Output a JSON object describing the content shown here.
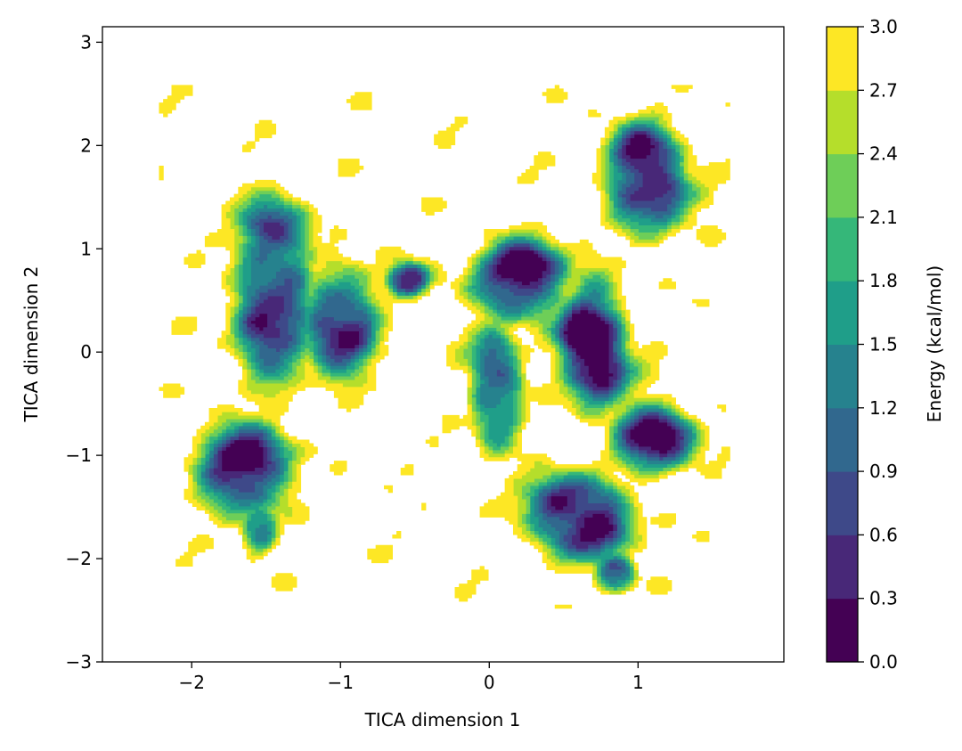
{
  "chart_data": {
    "type": "contour",
    "title": "",
    "xlabel": "TICA dimension 1",
    "ylabel": "TICA dimension 2",
    "xlim": [
      -2.6,
      1.98
    ],
    "ylim": [
      -3.0,
      3.15
    ],
    "xticks": [
      -2,
      -1,
      0,
      1
    ],
    "xtick_labels": [
      "−2",
      "−1",
      "0",
      "1"
    ],
    "yticks": [
      -3,
      -2,
      -1,
      0,
      1,
      2,
      3
    ],
    "ytick_labels": [
      "−3",
      "−2",
      "−1",
      "0",
      "1",
      "2",
      "3"
    ],
    "grid": false,
    "colorbar": {
      "label": "Energy (kcal/mol)",
      "levels": [
        0.0,
        0.3,
        0.6,
        0.9,
        1.2,
        1.5,
        1.8,
        2.1,
        2.4,
        2.7,
        3.0
      ],
      "tick_labels": [
        "0.0",
        "0.3",
        "0.6",
        "0.9",
        "1.2",
        "1.5",
        "1.8",
        "2.1",
        "2.4",
        "2.7",
        "3.0"
      ],
      "colors": [
        "#440154",
        "#482878",
        "#3e4989",
        "#31688e",
        "#26828e",
        "#1f9e89",
        "#35b779",
        "#6ece58",
        "#b5de2b",
        "#fde725"
      ]
    },
    "minima": [
      {
        "x": 0.25,
        "y": 0.85,
        "energy": 0.0
      },
      {
        "x": 0.62,
        "y": 0.2,
        "energy": 0.0
      },
      {
        "x": 0.8,
        "y": -0.25,
        "energy": 0.1
      },
      {
        "x": -1.63,
        "y": -1.0,
        "energy": 0.1
      },
      {
        "x": 1.15,
        "y": -0.8,
        "energy": 0.4
      },
      {
        "x": 0.8,
        "y": -1.75,
        "energy": 0.4
      },
      {
        "x": 0.4,
        "y": -1.4,
        "energy": 0.5
      },
      {
        "x": 0.98,
        "y": 2.0,
        "energy": 0.5
      },
      {
        "x": 1.25,
        "y": 1.55,
        "energy": 0.6
      },
      {
        "x": -1.5,
        "y": 1.25,
        "energy": 0.6
      },
      {
        "x": -1.0,
        "y": 0.1,
        "energy": 0.7
      },
      {
        "x": -1.55,
        "y": 0.3,
        "energy": 0.8
      },
      {
        "x": -0.5,
        "y": 0.7,
        "energy": 1.2
      },
      {
        "x": 0.0,
        "y": 0.1,
        "energy": 1.0
      }
    ]
  }
}
